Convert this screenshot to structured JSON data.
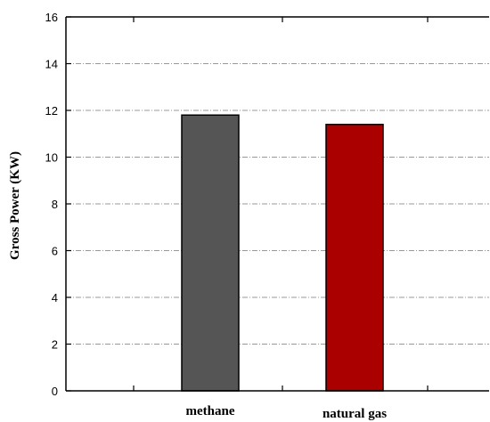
{
  "chart_data": {
    "type": "bar",
    "title": "",
    "xlabel": "",
    "ylabel": "Gross Power (KW)",
    "categories": [
      "methane",
      "natural gas"
    ],
    "values": [
      11.8,
      11.4
    ],
    "ylim": [
      0,
      16
    ],
    "yticks": [
      0,
      2,
      4,
      6,
      8,
      10,
      12,
      14,
      16
    ],
    "grid": true,
    "legend": "none",
    "colors": {
      "bars": [
        "#555555",
        "#aa0000"
      ],
      "grid": "#777777",
      "axis": "#000000"
    }
  }
}
